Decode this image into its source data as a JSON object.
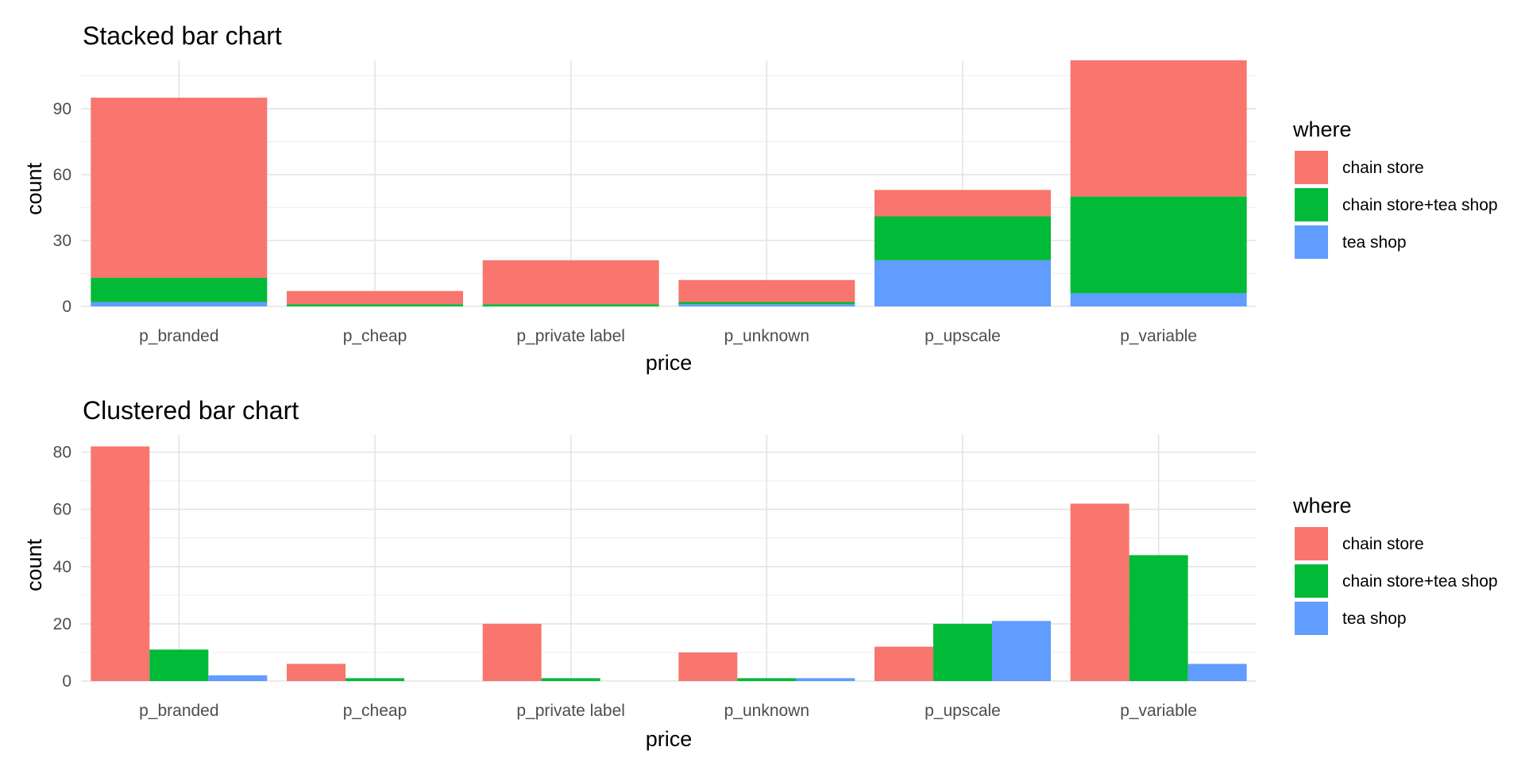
{
  "chart_data": [
    {
      "type": "bar",
      "stacked": true,
      "title": "Stacked bar chart",
      "xlabel": "price",
      "ylabel": "count",
      "categories": [
        "p_branded",
        "p_cheap",
        "p_private label",
        "p_unknown",
        "p_upscale",
        "p_variable"
      ],
      "yticks": [
        "0",
        "30",
        "60",
        "90"
      ],
      "ylim": [
        0,
        112
      ],
      "grid": true,
      "legend": {
        "title": "where",
        "placement": "right",
        "entries": [
          "chain store",
          "chain store+tea shop",
          "tea shop"
        ]
      },
      "series": [
        {
          "name": "chain store",
          "color": "#F8766D",
          "values": [
            82,
            6,
            20,
            10,
            12,
            62
          ]
        },
        {
          "name": "chain store+tea shop",
          "color": "#00BA38",
          "values": [
            11,
            1,
            1,
            1,
            20,
            44
          ]
        },
        {
          "name": "tea shop",
          "color": "#619CFF",
          "values": [
            2,
            0,
            0,
            1,
            21,
            6
          ]
        }
      ]
    },
    {
      "type": "bar",
      "stacked": false,
      "title": "Clustered bar chart",
      "xlabel": "price",
      "ylabel": "count",
      "categories": [
        "p_branded",
        "p_cheap",
        "p_private label",
        "p_unknown",
        "p_upscale",
        "p_variable"
      ],
      "yticks": [
        "0",
        "20",
        "40",
        "60",
        "80"
      ],
      "ylim": [
        0,
        86
      ],
      "grid": true,
      "legend": {
        "title": "where",
        "placement": "right",
        "entries": [
          "chain store",
          "chain store+tea shop",
          "tea shop"
        ]
      },
      "series": [
        {
          "name": "chain store",
          "color": "#F8766D",
          "values": [
            82,
            6,
            20,
            10,
            12,
            62
          ]
        },
        {
          "name": "chain store+tea shop",
          "color": "#00BA38",
          "values": [
            11,
            1,
            1,
            1,
            20,
            44
          ]
        },
        {
          "name": "tea shop",
          "color": "#619CFF",
          "values": [
            2,
            0,
            0,
            1,
            21,
            6
          ]
        }
      ]
    }
  ]
}
